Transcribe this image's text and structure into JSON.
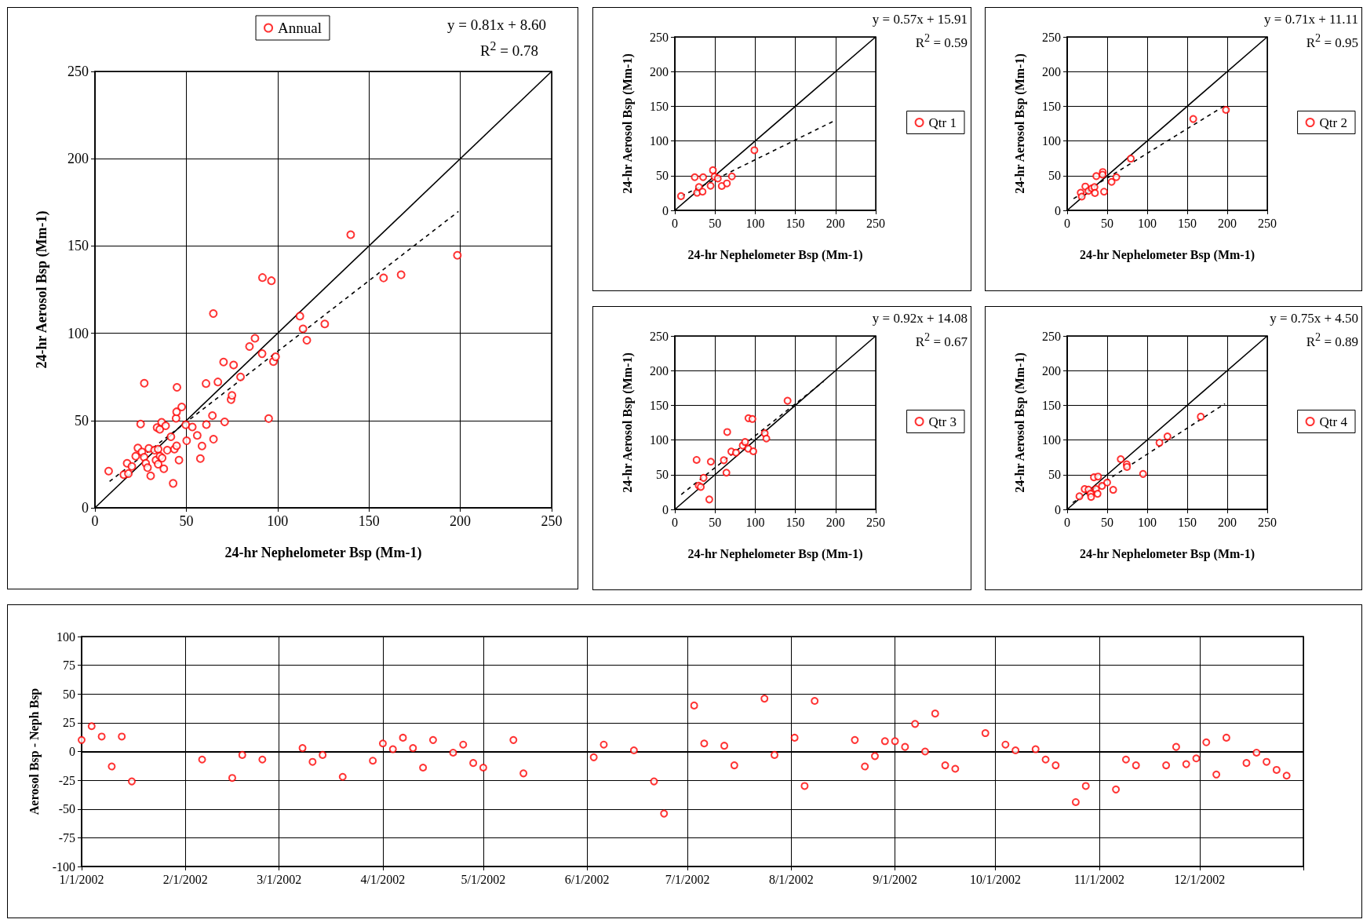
{
  "chart_data": [
    {
      "type": "scatter",
      "xlabel": "24-hr Nephelometer Bsp (Mm-1)",
      "ylabel": "24-hr Aerosol Bsp (Mm-1)",
      "xlim": [
        0,
        250
      ],
      "ylim": [
        0,
        250
      ],
      "xticks": [
        0,
        50,
        100,
        150,
        200,
        250
      ],
      "yticks": [
        0,
        50,
        100,
        150,
        200,
        250
      ],
      "grid": true,
      "legend": "top",
      "marker": "circle",
      "annotations": [
        "y = 0.81x + 8.60",
        "R$^{2}$ = 0.78"
      ],
      "series": [
        {
          "name": "Annual",
          "color": "#ff0000",
          "x": [
            7.5,
            15.8,
            18.3,
            17.6,
            20.2,
            22.3,
            23.5,
            25.7,
            26.9,
            27.8,
            28.8,
            25,
            27,
            29.5,
            30.5,
            32.6,
            34.6,
            34,
            35.5,
            36.5,
            38.7,
            33.4,
            34.6,
            35.6,
            36.8,
            37.7,
            39.6,
            41.6,
            42.8,
            43.5,
            44.7,
            46,
            44.4,
            44.7,
            44.9,
            47.5,
            49.7,
            50.2,
            53.3,
            56,
            57.7,
            58.6,
            61,
            60.8,
            64.3,
            64.9,
            64.8,
            67.3,
            71,
            70.4,
            74.5,
            75,
            75.9,
            79.7,
            84.6,
            87.6,
            91.5,
            91.7,
            95.1,
            96.6,
            97.7,
            98.9,
            112.2,
            113.9,
            116,
            125.8,
            140,
            158,
            167.6,
            198.4
          ],
          "values": [
            21,
            19,
            19.6,
            25.5,
            23.7,
            29.6,
            34.3,
            32,
            29,
            25.5,
            23,
            48,
            71.4,
            34,
            18.3,
            33,
            33.6,
            46,
            45,
            49,
            47,
            27.3,
            25,
            29.6,
            28.5,
            22.4,
            33,
            40.7,
            14,
            33.6,
            35.5,
            27.3,
            51.3,
            55,
            69,
            57.8,
            47.6,
            38.4,
            46.3,
            41.5,
            28.2,
            35.4,
            47.7,
            71.2,
            52.8,
            39.3,
            111.3,
            72.1,
            49.2,
            83.5,
            62,
            64.4,
            81.8,
            75,
            92.4,
            97.1,
            88.3,
            131.9,
            51.1,
            130.1,
            83.8,
            86.5,
            109.8,
            102.5,
            96,
            105.3,
            156.5,
            131.7,
            133.5,
            144.7
          ]
        },
        {
          "type": "line",
          "marker": "none",
          "line_style": "solid",
          "color": "#000000",
          "x": [
            0,
            250
          ],
          "values": [
            0,
            250
          ]
        },
        {
          "type": "line",
          "marker": "none",
          "line_style": "dashed",
          "color": "#000000",
          "x": [
            8,
            199
          ],
          "values": [
            15.1,
            169.8
          ]
        }
      ]
    },
    {
      "type": "scatter",
      "xlabel": "24-hr Nephelometer Bsp (Mm-1)",
      "ylabel": "24-hr Aerosol Bsp (Mm-1)",
      "xlim": [
        0,
        250
      ],
      "ylim": [
        0,
        250
      ],
      "xticks": [
        0,
        50,
        100,
        150,
        200,
        250
      ],
      "yticks": [
        0,
        50,
        100,
        150,
        200,
        250
      ],
      "grid": true,
      "legend": "right",
      "marker": "circle",
      "annotations": [
        "y = 0.57x + 15.91",
        "R$^{2}$ = 0.59"
      ],
      "series": [
        {
          "name": "Qtr 1",
          "color": "#ff0000",
          "x": [
            7.7,
            24.8,
            35.2,
            27.7,
            30,
            34.5,
            44.5,
            47.4,
            49.4,
            53.5,
            58.4,
            64.8,
            71,
            99
          ],
          "values": [
            20.5,
            47.8,
            47.8,
            25.4,
            33.6,
            26.9,
            35.4,
            57.8,
            48.5,
            45.9,
            35.1,
            38.8,
            48.9,
            86.6
          ]
        },
        {
          "type": "line",
          "marker": "none",
          "line_style": "solid",
          "color": "#000000",
          "x": [
            0,
            250
          ],
          "values": [
            0,
            250
          ]
        },
        {
          "type": "line",
          "marker": "none",
          "line_style": "dashed",
          "color": "#000000",
          "x": [
            8,
            197
          ],
          "values": [
            20.5,
            128.2
          ]
        }
      ]
    },
    {
      "type": "scatter",
      "xlabel": "24-hr Nephelometer Bsp (Mm-1)",
      "ylabel": "24-hr Aerosol Bsp (Mm-1)",
      "xlim": [
        0,
        250
      ],
      "ylim": [
        0,
        250
      ],
      "xticks": [
        0,
        50,
        100,
        150,
        200,
        250
      ],
      "yticks": [
        0,
        50,
        100,
        150,
        200,
        250
      ],
      "grid": true,
      "legend": "right",
      "marker": "circle",
      "annotations": [
        "y = 0.71x + 11.11",
        "R$^{2}$ = 0.95"
      ],
      "series": [
        {
          "name": "Qtr 2",
          "color": "#ff0000",
          "x": [
            16.9,
            18.2,
            22.7,
            26.6,
            30.8,
            34.1,
            34.7,
            36.4,
            44.5,
            44.2,
            46.1,
            55.5,
            61.4,
            79.5,
            157.5,
            198.4
          ],
          "values": [
            25.4,
            19.8,
            34.3,
            28,
            31.7,
            33.6,
            25,
            49.3,
            55.2,
            51.5,
            26.9,
            41,
            47.8,
            74.6,
            131.7,
            144.8
          ]
        },
        {
          "type": "line",
          "marker": "none",
          "line_style": "solid",
          "color": "#000000",
          "x": [
            0,
            250
          ],
          "values": [
            0,
            250
          ]
        },
        {
          "type": "line",
          "marker": "none",
          "line_style": "dashed",
          "color": "#000000",
          "x": [
            8,
            198
          ],
          "values": [
            16.8,
            151.7
          ]
        }
      ]
    },
    {
      "type": "scatter",
      "xlabel": "24-hr Nephelometer Bsp (Mm-1)",
      "ylabel": "24-hr Aerosol Bsp (Mm-1)",
      "xlim": [
        0,
        250
      ],
      "ylim": [
        0,
        250
      ],
      "xticks": [
        0,
        50,
        100,
        150,
        200,
        250
      ],
      "yticks": [
        0,
        50,
        100,
        150,
        200,
        250
      ],
      "grid": true,
      "legend": "right",
      "marker": "circle",
      "annotations": [
        "y = 0.92x + 14.08",
        "R$^{2}$ = 0.67"
      ],
      "series": [
        {
          "name": "Qtr 3",
          "color": "#ff0000",
          "x": [
            27.1,
            29.7,
            32.3,
            35.8,
            42.9,
            44.8,
            61,
            64.2,
            65.2,
            70.3,
            76.1,
            84.5,
            87.4,
            91.3,
            91.6,
            96.5,
            97.7,
            111.9,
            113.9,
            140.3
          ],
          "values": [
            71.3,
            34.2,
            32.3,
            45.4,
            14.3,
            68.7,
            70.9,
            52.9,
            111.5,
            83.3,
            81.8,
            92,
            97.2,
            87.5,
            131.4,
            130.3,
            83.7,
            109.6,
            102.1,
            156.5
          ]
        },
        {
          "type": "line",
          "marker": "none",
          "line_style": "solid",
          "color": "#000000",
          "x": [
            0,
            250
          ],
          "values": [
            0,
            250
          ]
        },
        {
          "type": "line",
          "marker": "none",
          "line_style": "dashed",
          "color": "#000000",
          "x": [
            8,
            185
          ],
          "values": [
            21.4,
            184.3
          ]
        }
      ]
    },
    {
      "type": "scatter",
      "xlabel": "24-hr Nephelometer Bsp (Mm-1)",
      "ylabel": "24-hr Aerosol Bsp (Mm-1)",
      "xlim": [
        0,
        250
      ],
      "ylim": [
        0,
        250
      ],
      "xticks": [
        0,
        50,
        100,
        150,
        200,
        250
      ],
      "yticks": [
        0,
        50,
        100,
        150,
        200,
        250
      ],
      "grid": true,
      "legend": "right",
      "marker": "circle",
      "annotations": [
        "y = 0.75x + 4.50",
        "R$^{2}$ = 0.89"
      ],
      "series": [
        {
          "name": "Qtr 4",
          "color": "#ff0000",
          "x": [
            15.3,
            21.8,
            26.6,
            29.2,
            29.9,
            33.4,
            36,
            38,
            38.6,
            43.5,
            50,
            57.5,
            66.9,
            74.4,
            74.7,
            94.8,
            115.3,
            125.3,
            166.9
          ],
          "values": [
            18.8,
            29.3,
            28.5,
            22.5,
            18,
            46.2,
            29.3,
            22.5,
            47.3,
            33.8,
            38.7,
            28.2,
            72.4,
            64.9,
            61.2,
            51.1,
            96.1,
            105.1,
            133.6
          ]
        },
        {
          "type": "line",
          "marker": "none",
          "line_style": "solid",
          "color": "#000000",
          "x": [
            0,
            250
          ],
          "values": [
            0,
            250
          ]
        },
        {
          "type": "line",
          "marker": "none",
          "line_style": "dashed",
          "color": "#000000",
          "x": [
            7,
            197
          ],
          "values": [
            9.8,
            152.3
          ]
        }
      ]
    },
    {
      "type": "scatter",
      "ylabel": "Aerosol Bsp - Neph Bsp",
      "xlim": [
        "2002-01-01",
        "2003-01-01"
      ],
      "ylim": [
        -100,
        100
      ],
      "yticks": [
        -100,
        -75,
        -50,
        -25,
        0,
        25,
        50,
        75,
        100
      ],
      "xticks": [
        {
          "value": "2002-01-01",
          "label": "1/1/2002"
        },
        {
          "value": "2002-02-01",
          "label": "2/1/2002"
        },
        {
          "value": "2002-03-01",
          "label": "3/1/2002"
        },
        {
          "value": "2002-04-01",
          "label": "4/1/2002"
        },
        {
          "value": "2002-05-01",
          "label": "5/1/2002"
        },
        {
          "value": "2002-06-01",
          "label": "6/1/2002"
        },
        {
          "value": "2002-07-01",
          "label": "7/1/2002"
        },
        {
          "value": "2002-08-01",
          "label": "8/1/2002"
        },
        {
          "value": "2002-09-01",
          "label": "9/1/2002"
        },
        {
          "value": "2002-10-01",
          "label": "10/1/2002"
        },
        {
          "value": "2002-11-01",
          "label": "11/1/2002"
        },
        {
          "value": "2002-12-01",
          "label": "12/1/2002"
        },
        {
          "value": "2003-01-01",
          "label": null
        }
      ],
      "grid": true,
      "marker": "circle",
      "ref_lines": [
        {
          "axis": "y",
          "value": 0,
          "color": "#000000"
        }
      ],
      "series": [
        {
          "color": "#ff0000",
          "x": [
            "2002-01-01",
            "2002-01-04",
            "2002-01-07",
            "2002-01-10",
            "2002-01-13",
            "2002-01-16",
            "2002-02-06",
            "2002-02-15",
            "2002-02-18",
            "2002-02-24",
            "2002-03-08",
            "2002-03-11",
            "2002-03-14",
            "2002-03-20",
            "2002-03-29",
            "2002-04-01",
            "2002-04-04",
            "2002-04-07",
            "2002-04-10",
            "2002-04-13",
            "2002-04-16",
            "2002-04-22",
            "2002-04-25",
            "2002-04-28",
            "2002-05-01",
            "2002-05-10",
            "2002-05-13",
            "2002-06-03",
            "2002-06-06",
            "2002-06-15",
            "2002-06-21",
            "2002-06-24",
            "2002-07-03",
            "2002-07-06",
            "2002-07-12",
            "2002-07-15",
            "2002-07-24",
            "2002-07-27",
            "2002-08-02",
            "2002-08-05",
            "2002-08-08",
            "2002-08-20",
            "2002-08-23",
            "2002-08-26",
            "2002-08-29",
            "2002-09-01",
            "2002-09-04",
            "2002-09-07",
            "2002-09-10",
            "2002-09-13",
            "2002-09-16",
            "2002-09-19",
            "2002-09-28",
            "2002-10-04",
            "2002-10-07",
            "2002-10-13",
            "2002-10-16",
            "2002-10-19",
            "2002-10-25",
            "2002-10-28",
            "2002-11-06",
            "2002-11-09",
            "2002-11-12",
            "2002-11-21",
            "2002-11-24",
            "2002-11-27",
            "2002-11-30",
            "2002-12-03",
            "2002-12-06",
            "2002-12-09",
            "2002-12-15",
            "2002-12-18",
            "2002-12-21",
            "2002-12-24",
            "2002-12-27"
          ],
          "values": [
            10,
            22,
            13,
            -13,
            13,
            -26,
            -7,
            -23,
            -3,
            -7,
            3,
            -9,
            -3,
            -22,
            -8,
            7,
            2,
            12,
            3,
            -14,
            10,
            -1,
            6,
            -10,
            -14,
            10,
            -19,
            -5,
            6,
            1,
            -26,
            -54,
            40,
            7,
            5,
            -12,
            46,
            -3,
            12,
            -30,
            44,
            10,
            -13,
            -4,
            9,
            9,
            4,
            24,
            0,
            33,
            -12,
            -15,
            16,
            6,
            1,
            2,
            -7,
            -12,
            -44,
            -30,
            -33,
            -7,
            -12,
            -12,
            4,
            -11,
            -6,
            8,
            -20,
            12,
            -10,
            -1,
            -9,
            -16,
            -21
          ]
        }
      ]
    }
  ]
}
